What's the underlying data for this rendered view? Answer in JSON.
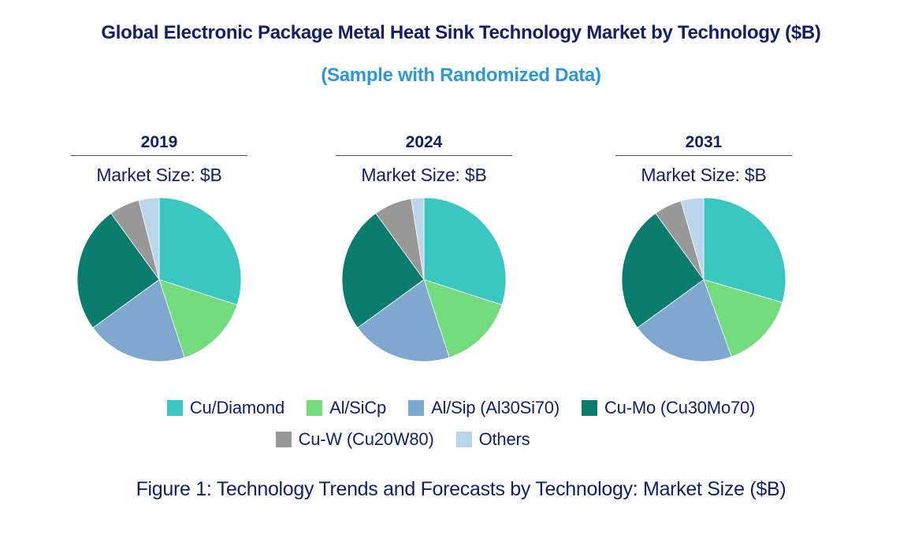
{
  "header": {
    "title": "Global Electronic Package Metal Heat Sink Technology Market by Technology ($B)",
    "subtitle": "(Sample with Randomized Data)"
  },
  "colors": {
    "title_navy": "#121F66",
    "subtitle_blue": "#2E97D8",
    "underline_gray": "#4A4A4A",
    "cu_diamond_teal": "#3AC6C1",
    "al_sicp_green": "#75DB7F",
    "al_sip_blue": "#7EA8CE",
    "cu_mo_dark_teal": "#0A7B6F",
    "cu_w_gray": "#989898",
    "others_light_blue": "#BAD5EC"
  },
  "legend": {
    "items": [
      {
        "label": "Cu/Diamond",
        "color": "#3AC6C1"
      },
      {
        "label": "Al/SiCp",
        "color": "#75DB7F"
      },
      {
        "label": "Al/Sip (Al30Si70)",
        "color": "#7EA8CE"
      },
      {
        "label": "Cu-Mo (Cu30Mo70)",
        "color": "#0A7B6F"
      },
      {
        "label": "Cu-W (Cu20W80)",
        "color": "#989898"
      },
      {
        "label": "Others",
        "color": "#BAD5EC"
      }
    ]
  },
  "chart_data": [
    {
      "type": "pie",
      "year": "2019",
      "unit_label": "Market Size: $B",
      "start_angle_deg": 0,
      "direction": "clockwise",
      "categories": [
        "Cu/Diamond",
        "Al/SiCp",
        "Al/Sip (Al30Si70)",
        "Cu-Mo (Cu30Mo70)",
        "Cu-W (Cu20W80)",
        "Others"
      ],
      "values_pct": [
        30,
        15,
        20,
        25,
        6,
        4
      ]
    },
    {
      "type": "pie",
      "year": "2024",
      "unit_label": "Market Size: $B",
      "start_angle_deg": 0,
      "direction": "clockwise",
      "categories": [
        "Cu/Diamond",
        "Al/SiCp",
        "Al/Sip (Al30Si70)",
        "Cu-Mo (Cu30Mo70)",
        "Cu-W (Cu20W80)",
        "Others"
      ],
      "values_pct": [
        30,
        15,
        20,
        25,
        7.5,
        2.5
      ]
    },
    {
      "type": "pie",
      "year": "2031",
      "unit_label": "Market Size: $B",
      "start_angle_deg": 0,
      "direction": "clockwise",
      "categories": [
        "Cu/Diamond",
        "Al/SiCp",
        "Al/Sip (Al30Si70)",
        "Cu-Mo (Cu30Mo70)",
        "Cu-W (Cu20W80)",
        "Others"
      ],
      "values_pct": [
        29.5,
        15,
        20.5,
        25,
        5.5,
        4.5
      ]
    }
  ],
  "caption": "Figure 1: Technology Trends and Forecasts by Technology: Market Size ($B)"
}
